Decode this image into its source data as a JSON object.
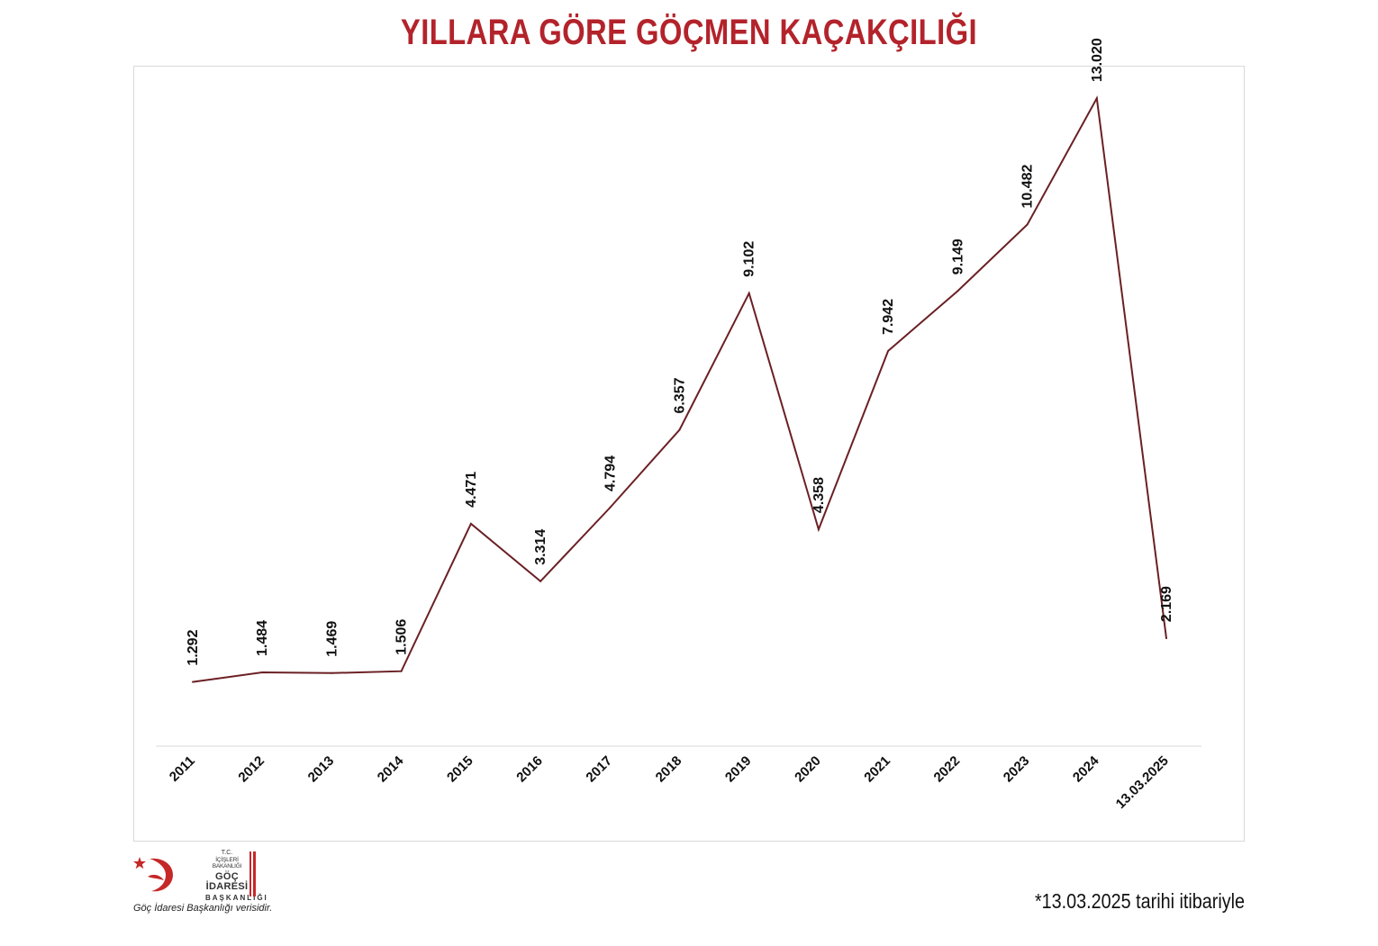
{
  "title": "YILLARA GÖRE GÖÇMEN KAÇAKÇILIĞI",
  "colors": {
    "title": "#b3232b",
    "line": "#6b2024",
    "accent": "#c62828"
  },
  "chart_data": {
    "type": "line",
    "title": "YILLARA GÖRE GÖÇMEN KAÇAKÇILIĞI",
    "xlabel": "",
    "ylabel": "",
    "categories": [
      "2011",
      "2012",
      "2013",
      "2014",
      "2015",
      "2016",
      "2017",
      "2018",
      "2019",
      "2020",
      "2021",
      "2022",
      "2023",
      "2024",
      "13.03.2025"
    ],
    "series": [
      {
        "values": [
          1292,
          1484,
          1469,
          1506,
          4471,
          3314,
          4794,
          6357,
          9102,
          4358,
          7942,
          9149,
          10482,
          13020,
          2169
        ]
      }
    ],
    "data_labels": [
      "1.292",
      "1.484",
      "1.469",
      "1.506",
      "4.471",
      "3.314",
      "4.794",
      "6.357",
      "9.102",
      "4.358",
      "7.942",
      "9.149",
      "10.482",
      "13.020",
      "2.169"
    ],
    "ylim": [
      0,
      14000
    ],
    "grid": false,
    "legend": "none"
  },
  "logo": {
    "tc": "T.C.",
    "ministry": "İÇİŞLERİ BAKANLIĞI",
    "org": "GÖÇ İDARESİ",
    "org2": "BAŞKANLIĞI"
  },
  "source_note": "Göç İdaresi Başkanlığı verisidir.",
  "footnote": "*13.03.2025 tarihi itibariyle"
}
